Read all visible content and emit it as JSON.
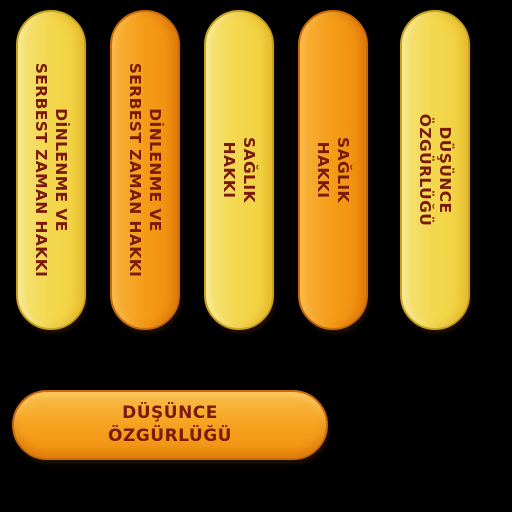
{
  "cards": [
    {
      "color": "yellow",
      "lines": [
        "DİNLENME VE",
        "SERBEST ZAMAN HAKKI"
      ]
    },
    {
      "color": "orange",
      "lines": [
        "DİNLENME VE",
        "SERBEST ZAMAN HAKKI"
      ]
    },
    {
      "color": "yellow",
      "lines": [
        "SAĞLIK",
        "HAKKI"
      ]
    },
    {
      "color": "orange",
      "lines": [
        "SAĞLIK",
        "HAKKI"
      ]
    },
    {
      "color": "yellow",
      "lines": [
        "DÜŞÜNCE",
        "ÖZGÜRLÜĞÜ"
      ]
    }
  ],
  "horizontal_card": {
    "color": "orange",
    "lines": [
      "DÜŞÜNCE",
      "ÖZGÜRLÜĞÜ"
    ]
  },
  "colors": {
    "yellow": "#f3d84f",
    "orange": "#f59b16",
    "text": "#7a1a0a",
    "background": "#000000"
  }
}
